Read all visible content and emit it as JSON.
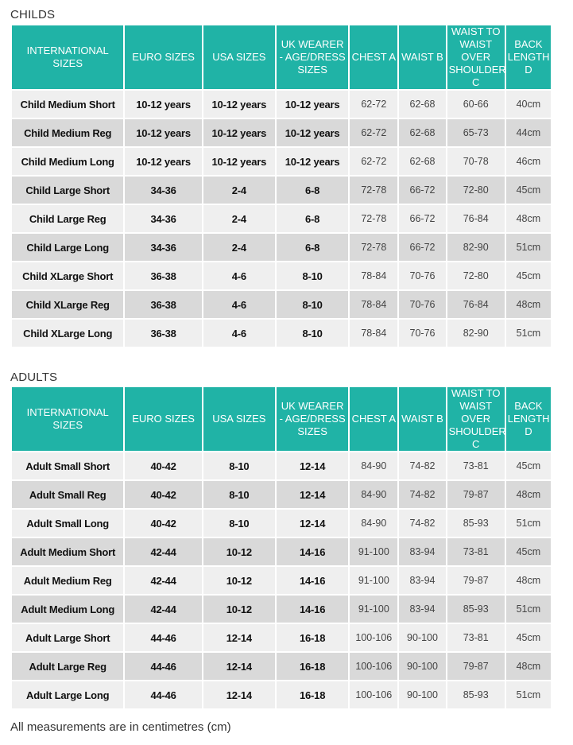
{
  "childs": {
    "title": "CHILDS",
    "headers": [
      "INTERNATIONAL SIZES",
      "EURO SIZES",
      "USA SIZES",
      "UK WEARER - AGE/DRESS SIZES",
      "CHEST A",
      "WAIST B",
      "WAIST TO WAIST OVER SHOULDER C",
      "BACK LENGTH D"
    ],
    "rows": [
      [
        "Child Medium Short",
        "10-12 years",
        "10-12 years",
        "10-12 years",
        "62-72",
        "62-68",
        "60-66",
        "40cm"
      ],
      [
        "Child Medium Reg",
        "10-12 years",
        "10-12 years",
        "10-12 years",
        "62-72",
        "62-68",
        "65-73",
        "44cm"
      ],
      [
        "Child Medium Long",
        "10-12 years",
        "10-12 years",
        "10-12 years",
        "62-72",
        "62-68",
        "70-78",
        "46cm"
      ],
      [
        "Child Large Short",
        "34-36",
        "2-4",
        "6-8",
        "72-78",
        "66-72",
        "72-80",
        "45cm"
      ],
      [
        "Child Large Reg",
        "34-36",
        "2-4",
        "6-8",
        "72-78",
        "66-72",
        "76-84",
        "48cm"
      ],
      [
        "Child Large Long",
        "34-36",
        "2-4",
        "6-8",
        "72-78",
        "66-72",
        "82-90",
        "51cm"
      ],
      [
        "Child XLarge Short",
        "36-38",
        "4-6",
        "8-10",
        "78-84",
        "70-76",
        "72-80",
        "45cm"
      ],
      [
        "Child XLarge Reg",
        "36-38",
        "4-6",
        "8-10",
        "78-84",
        "70-76",
        "76-84",
        "48cm"
      ],
      [
        "Child XLarge Long",
        "36-38",
        "4-6",
        "8-10",
        "78-84",
        "70-76",
        "82-90",
        "51cm"
      ]
    ]
  },
  "adults": {
    "title": "ADULTS",
    "headers": [
      "INTERNATIONAL SIZES",
      "EURO SIZES",
      "USA SIZES",
      "UK WEARER - AGE/DRESS SIZES",
      "CHEST A",
      "WAIST B",
      "WAIST TO WAIST OVER SHOULDER C",
      "BACK LENGTH D"
    ],
    "rows": [
      [
        "Adult Small Short",
        "40-42",
        "8-10",
        "12-14",
        "84-90",
        "74-82",
        "73-81",
        "45cm"
      ],
      [
        "Adult Small Reg",
        "40-42",
        "8-10",
        "12-14",
        "84-90",
        "74-82",
        "79-87",
        "48cm"
      ],
      [
        "Adult Small Long",
        "40-42",
        "8-10",
        "12-14",
        "84-90",
        "74-82",
        "85-93",
        "51cm"
      ],
      [
        "Adult Medium Short",
        "42-44",
        "10-12",
        "14-16",
        "91-100",
        "83-94",
        "73-81",
        "45cm"
      ],
      [
        "Adult Medium Reg",
        "42-44",
        "10-12",
        "14-16",
        "91-100",
        "83-94",
        "79-87",
        "48cm"
      ],
      [
        "Adult Medium Long",
        "42-44",
        "10-12",
        "14-16",
        "91-100",
        "83-94",
        "85-93",
        "51cm"
      ],
      [
        "Adult Large Short",
        "44-46",
        "12-14",
        "16-18",
        "100-106",
        "90-100",
        "73-81",
        "45cm"
      ],
      [
        "Adult Large Reg",
        "44-46",
        "12-14",
        "16-18",
        "100-106",
        "90-100",
        "79-87",
        "48cm"
      ],
      [
        "Adult Large Long",
        "44-46",
        "12-14",
        "16-18",
        "100-106",
        "90-100",
        "85-93",
        "51cm"
      ]
    ]
  },
  "footnote": "All measurements are in centimetres (cm)",
  "colors": {
    "header_bg": "#20b3a6",
    "row_light": "#efefef",
    "row_dark": "#d9d9d9"
  }
}
